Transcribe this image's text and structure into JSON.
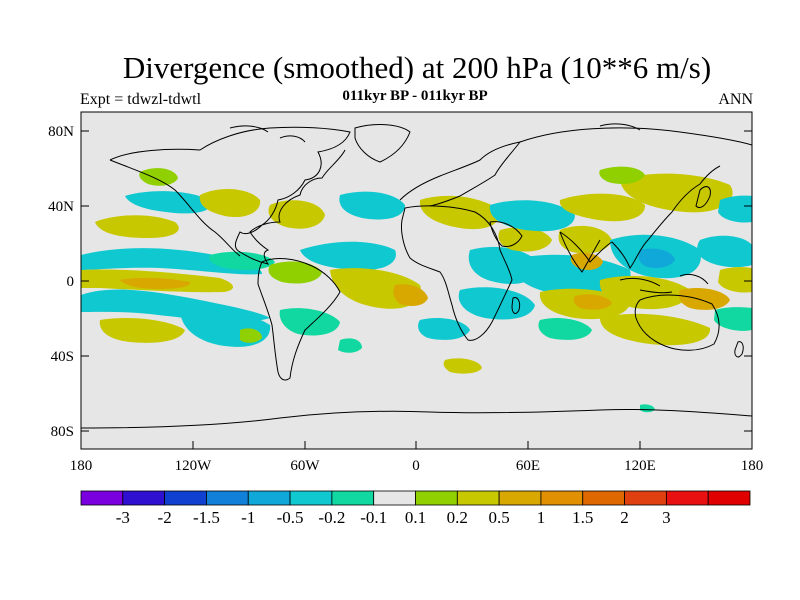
{
  "title": "Divergence (smoothed) at 200 hPa (10**6 m/s)",
  "left_label": "Expt = tdwzl-tdwtl",
  "center_label": "011kyr BP - 011kyr BP",
  "right_label": "ANN",
  "axes": {
    "y_ticks": [
      "80N",
      "40N",
      "0",
      "40S",
      "80S"
    ],
    "x_ticks": [
      "180",
      "120W",
      "60W",
      "0",
      "60E",
      "120E",
      "180"
    ]
  },
  "colorbar": {
    "colors": [
      "#7a00e0",
      "#3010d0",
      "#1040d0",
      "#1080d8",
      "#10a8d8",
      "#10c8d0",
      "#10d8a0",
      "#e6e6e6",
      "#90d000",
      "#c8c800",
      "#d8a800",
      "#e09000",
      "#e06800",
      "#e04010",
      "#e81010",
      "#e00000"
    ],
    "labels": [
      "-3",
      "-2",
      "-1.5",
      "-1",
      "-0.5",
      "-0.2",
      "-0.1",
      "0.1",
      "0.2",
      "0.5",
      "1",
      "1.5",
      "2",
      "3"
    ]
  },
  "colors": {
    "background": "#e6e6e6",
    "negative_mid": "#10c8d0",
    "negative_strong": "#10a8d8",
    "negative_light": "#10d8a0",
    "positive_light": "#90d000",
    "positive_mid": "#c8c800",
    "positive_strong": "#d8a800"
  }
}
